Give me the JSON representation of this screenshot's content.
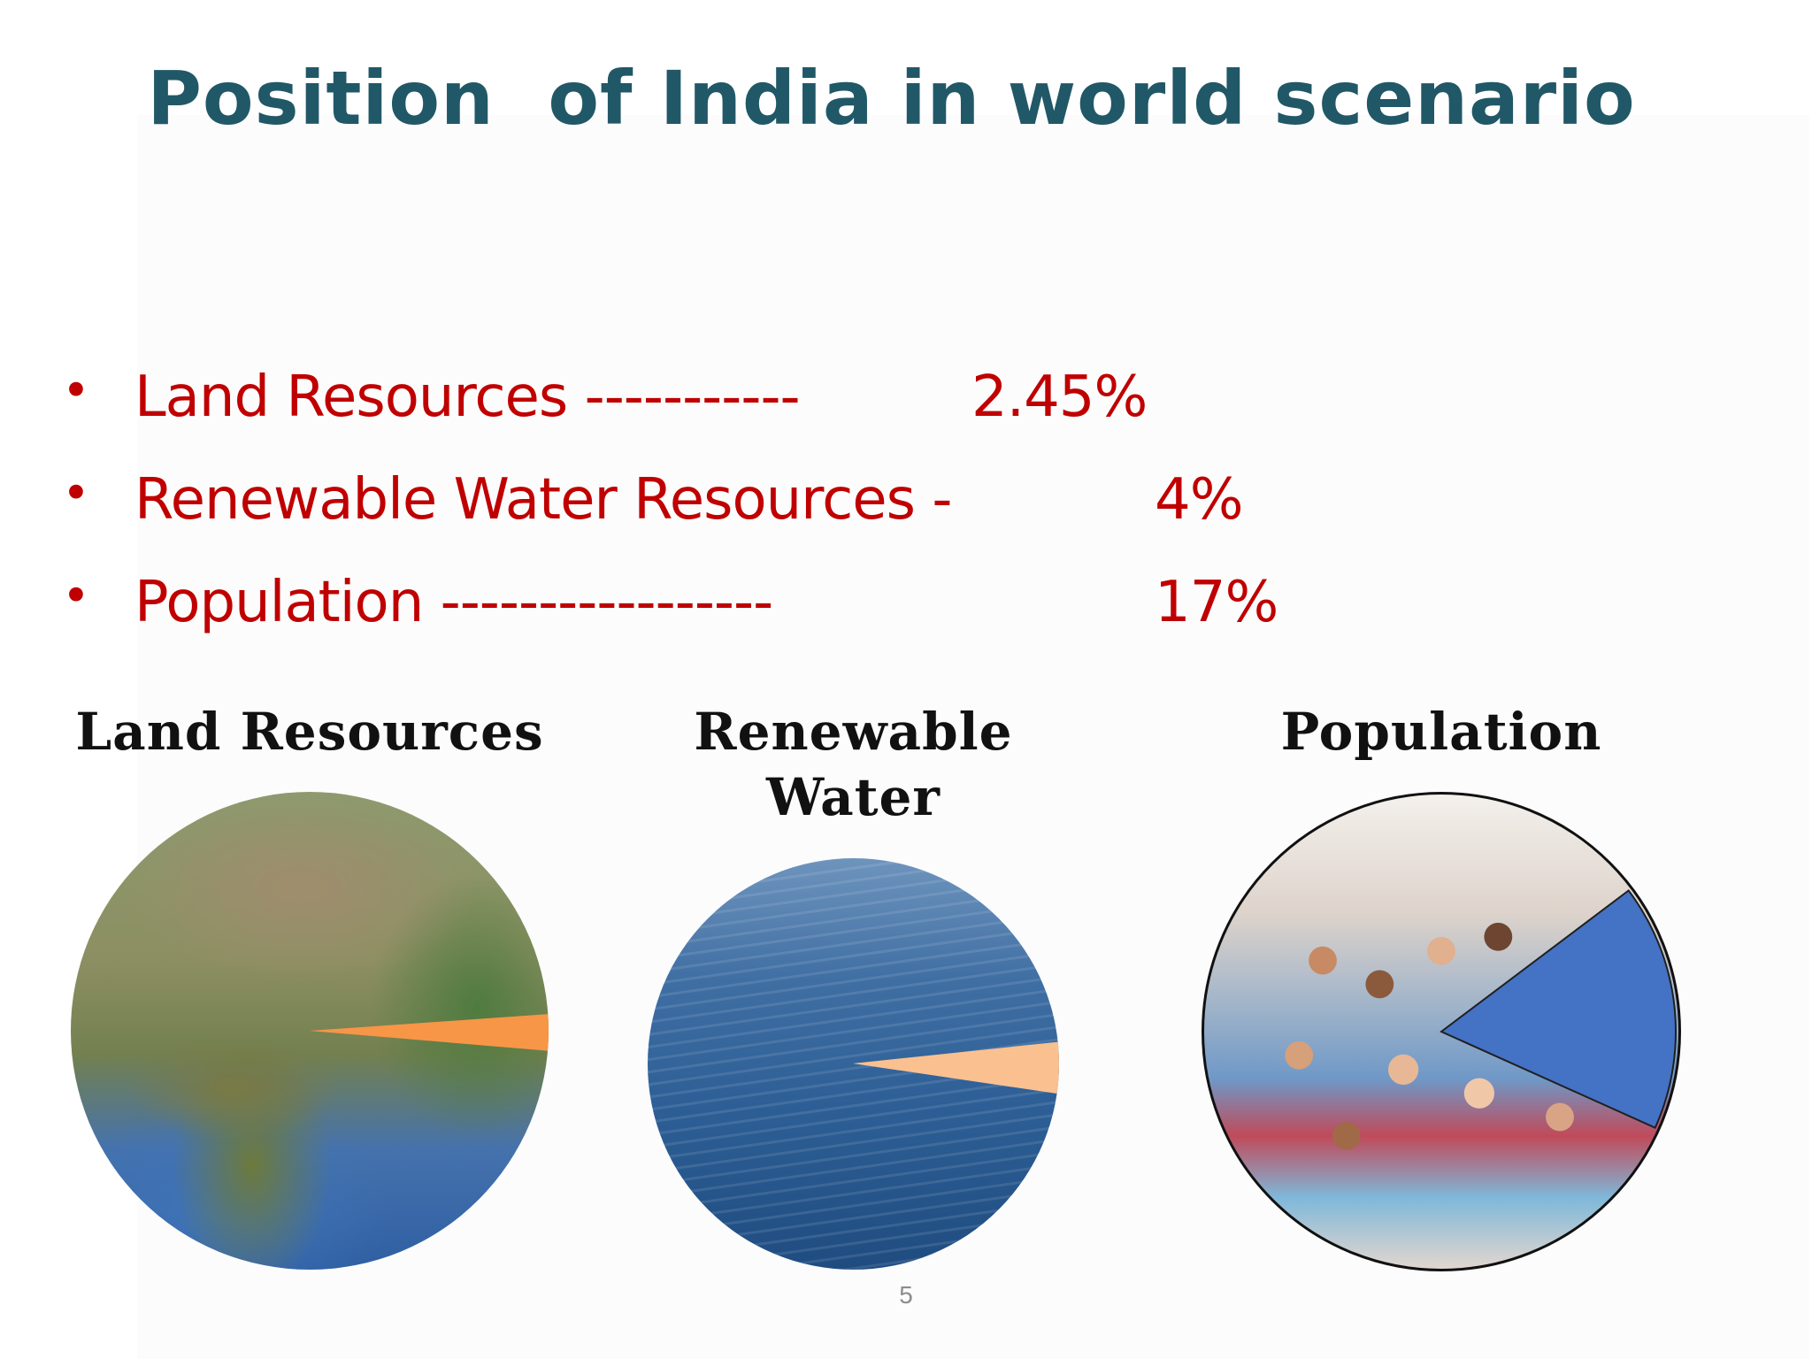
{
  "slide": {
    "title": "Position  of India in world scenario",
    "page_number": "5"
  },
  "bullets": [
    {
      "label": "Land Resources -----------",
      "value": "2.45%"
    },
    {
      "label": "Renewable Water Resources -",
      "value": "4%"
    },
    {
      "label": "Population -----------------",
      "value": "17%"
    }
  ],
  "panels": {
    "land": {
      "title": "Land Resources",
      "image": "earth-satellite-image-india",
      "share_percent": 2.45,
      "wedge_color": "#f79646"
    },
    "water": {
      "title_line1": "Renewable",
      "title_line2": "Water",
      "image": "ocean-water-image",
      "share_percent": 4,
      "wedge_color": "#fac090"
    },
    "population": {
      "title": "Population",
      "image": "crowd-of-people-image",
      "share_percent": 17,
      "wedge_color": "#4472c4"
    }
  },
  "colors": {
    "title": "#215868",
    "bullet_text": "#c00000"
  }
}
